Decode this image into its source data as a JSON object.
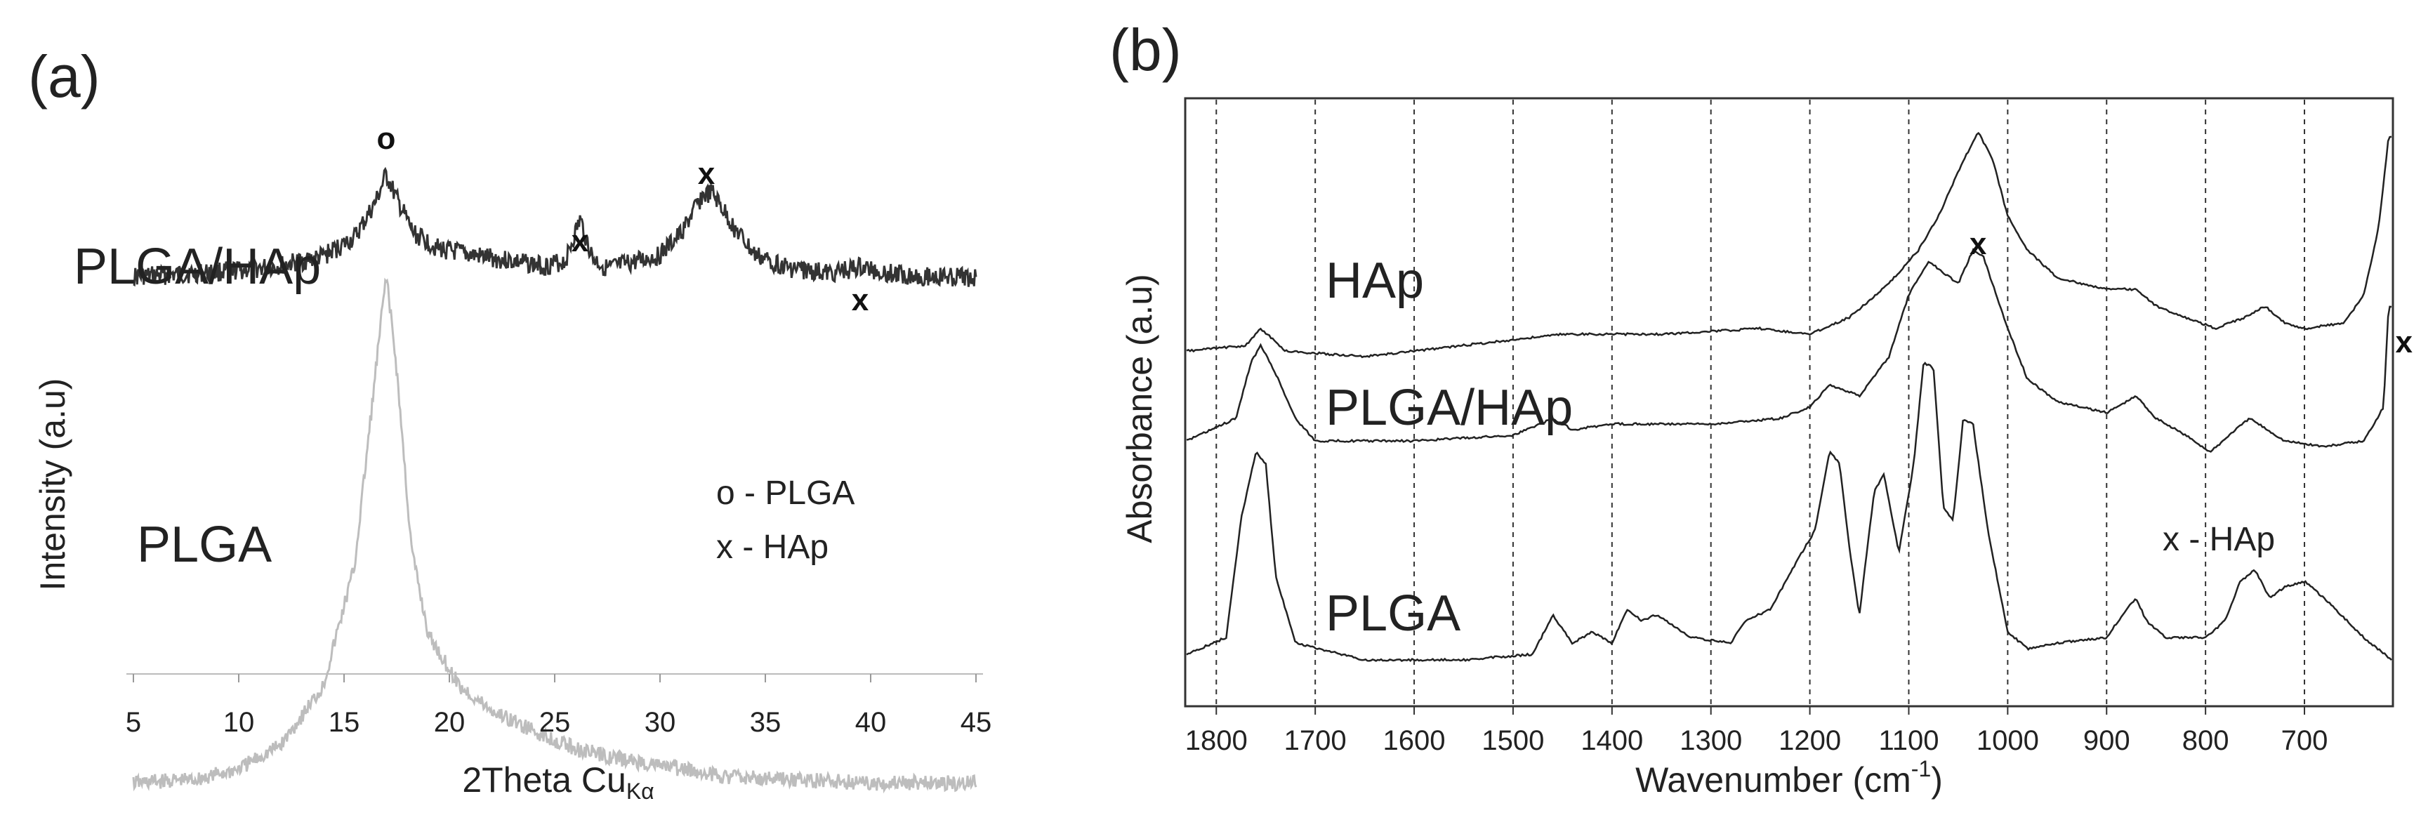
{
  "chart_data": [
    {
      "panel": "(a)",
      "type": "line",
      "xlabel": "2Theta Cu",
      "xlabel_subscript": "Kα",
      "ylabel": "Intensity (a.u)",
      "xlim": [
        5,
        45
      ],
      "x_ticks": [
        "5",
        "10",
        "15",
        "20",
        "25",
        "30",
        "35",
        "40",
        "45"
      ],
      "y_ticks_shown": false,
      "series": [
        {
          "name": "PLGA/HAp",
          "color": "#333333",
          "points": [
            [
              5,
              0.3
            ],
            [
              8,
              0.32
            ],
            [
              10,
              0.34
            ],
            [
              12,
              0.37
            ],
            [
              14,
              0.43
            ],
            [
              15.5,
              0.55
            ],
            [
              16.5,
              0.78
            ],
            [
              17,
              0.96
            ],
            [
              17.5,
              0.8
            ],
            [
              18.3,
              0.58
            ],
            [
              19.5,
              0.48
            ],
            [
              21,
              0.44
            ],
            [
              23,
              0.4
            ],
            [
              24.5,
              0.37
            ],
            [
              25.5,
              0.4
            ],
            [
              26.2,
              0.67
            ],
            [
              26.8,
              0.42
            ],
            [
              27.5,
              0.35
            ],
            [
              29,
              0.4
            ],
            [
              30,
              0.44
            ],
            [
              31,
              0.58
            ],
            [
              32,
              0.82
            ],
            [
              32.5,
              0.84
            ],
            [
              33.5,
              0.62
            ],
            [
              34.5,
              0.44
            ],
            [
              36,
              0.36
            ],
            [
              38,
              0.32
            ],
            [
              39.5,
              0.36
            ],
            [
              41,
              0.32
            ],
            [
              43,
              0.3
            ],
            [
              45,
              0.29
            ]
          ]
        },
        {
          "name": "PLGA",
          "color": "#bdbdbd",
          "points": [
            [
              5,
              -0.48
            ],
            [
              8,
              -0.47
            ],
            [
              10,
              -0.44
            ],
            [
              12,
              -0.37
            ],
            [
              14,
              -0.2
            ],
            [
              15.5,
              0.15
            ],
            [
              16.3,
              0.6
            ],
            [
              17,
              1.0
            ],
            [
              17.5,
              0.72
            ],
            [
              18.2,
              0.2
            ],
            [
              19,
              -0.05
            ],
            [
              20.5,
              -0.2
            ],
            [
              22,
              -0.27
            ],
            [
              24,
              -0.33
            ],
            [
              26,
              -0.38
            ],
            [
              28,
              -0.41
            ],
            [
              30,
              -0.43
            ],
            [
              33,
              -0.46
            ],
            [
              36,
              -0.47
            ],
            [
              40,
              -0.48
            ],
            [
              45,
              -0.48
            ]
          ]
        }
      ],
      "annotations": [
        {
          "text": "o",
          "x": 17
        },
        {
          "text": "x",
          "x": 26.2
        },
        {
          "text": "x",
          "x": 32.2
        },
        {
          "text": "x",
          "x": 39.5
        }
      ],
      "legend": [
        "o -  PLGA",
        "x  - HAp"
      ]
    },
    {
      "panel": "(b)",
      "type": "line",
      "xlabel": "Wavenumber (cm",
      "xlabel_superscript": "-1",
      "xlabel_close": ")",
      "ylabel": "Absorbance (a.u)",
      "xlim": [
        1830,
        612
      ],
      "x_ticks": [
        "1800",
        "1700",
        "1600",
        "1500",
        "1400",
        "1300",
        "1200",
        "1100",
        "1000",
        "900",
        "800",
        "700"
      ],
      "y_ticks_shown": false,
      "grid": "vertical-dashed",
      "series": [
        {
          "name": "HAp",
          "color": "#222222",
          "points": [
            [
              1830,
              0.6
            ],
            [
              1770,
              0.61
            ],
            [
              1755,
              0.64
            ],
            [
              1730,
              0.6
            ],
            [
              1650,
              0.59
            ],
            [
              1550,
              0.61
            ],
            [
              1450,
              0.63
            ],
            [
              1350,
              0.63
            ],
            [
              1250,
              0.64
            ],
            [
              1200,
              0.63
            ],
            [
              1160,
              0.66
            ],
            [
              1120,
              0.72
            ],
            [
              1090,
              0.78
            ],
            [
              1070,
              0.84
            ],
            [
              1050,
              0.92
            ],
            [
              1030,
              0.99
            ],
            [
              1015,
              0.94
            ],
            [
              1000,
              0.84
            ],
            [
              980,
              0.78
            ],
            [
              950,
              0.73
            ],
            [
              900,
              0.71
            ],
            [
              870,
              0.71
            ],
            [
              850,
              0.68
            ],
            [
              820,
              0.66
            ],
            [
              790,
              0.64
            ],
            [
              760,
              0.66
            ],
            [
              740,
              0.68
            ],
            [
              720,
              0.65
            ],
            [
              700,
              0.64
            ],
            [
              660,
              0.65
            ],
            [
              640,
              0.7
            ],
            [
              625,
              0.82
            ],
            [
              615,
              0.98
            ]
          ]
        },
        {
          "name": "PLGA/HAp",
          "color": "#222222",
          "points": [
            [
              1830,
              0.44
            ],
            [
              1780,
              0.48
            ],
            [
              1765,
              0.58
            ],
            [
              1755,
              0.61
            ],
            [
              1740,
              0.56
            ],
            [
              1720,
              0.48
            ],
            [
              1700,
              0.44
            ],
            [
              1600,
              0.44
            ],
            [
              1500,
              0.45
            ],
            [
              1460,
              0.48
            ],
            [
              1440,
              0.46
            ],
            [
              1400,
              0.47
            ],
            [
              1300,
              0.47
            ],
            [
              1230,
              0.48
            ],
            [
              1200,
              0.5
            ],
            [
              1180,
              0.54
            ],
            [
              1165,
              0.53
            ],
            [
              1150,
              0.52
            ],
            [
              1120,
              0.59
            ],
            [
              1100,
              0.7
            ],
            [
              1080,
              0.76
            ],
            [
              1065,
              0.74
            ],
            [
              1050,
              0.72
            ],
            [
              1035,
              0.78
            ],
            [
              1025,
              0.77
            ],
            [
              1000,
              0.64
            ],
            [
              980,
              0.55
            ],
            [
              950,
              0.51
            ],
            [
              900,
              0.49
            ],
            [
              870,
              0.52
            ],
            [
              850,
              0.48
            ],
            [
              820,
              0.45
            ],
            [
              795,
              0.42
            ],
            [
              770,
              0.46
            ],
            [
              755,
              0.48
            ],
            [
              720,
              0.44
            ],
            [
              680,
              0.43
            ],
            [
              640,
              0.44
            ],
            [
              620,
              0.5
            ],
            [
              615,
              0.68
            ]
          ]
        },
        {
          "name": "PLGA",
          "color": "#222222",
          "points": [
            [
              1830,
              0.06
            ],
            [
              1790,
              0.09
            ],
            [
              1775,
              0.3
            ],
            [
              1760,
              0.42
            ],
            [
              1750,
              0.4
            ],
            [
              1740,
              0.2
            ],
            [
              1720,
              0.08
            ],
            [
              1650,
              0.05
            ],
            [
              1550,
              0.05
            ],
            [
              1480,
              0.06
            ],
            [
              1460,
              0.13
            ],
            [
              1440,
              0.08
            ],
            [
              1420,
              0.1
            ],
            [
              1400,
              0.08
            ],
            [
              1385,
              0.14
            ],
            [
              1370,
              0.12
            ],
            [
              1355,
              0.13
            ],
            [
              1320,
              0.09
            ],
            [
              1280,
              0.08
            ],
            [
              1265,
              0.12
            ],
            [
              1240,
              0.14
            ],
            [
              1215,
              0.22
            ],
            [
              1195,
              0.28
            ],
            [
              1180,
              0.42
            ],
            [
              1170,
              0.4
            ],
            [
              1160,
              0.25
            ],
            [
              1150,
              0.13
            ],
            [
              1135,
              0.35
            ],
            [
              1125,
              0.38
            ],
            [
              1110,
              0.24
            ],
            [
              1095,
              0.4
            ],
            [
              1085,
              0.58
            ],
            [
              1075,
              0.57
            ],
            [
              1065,
              0.32
            ],
            [
              1055,
              0.3
            ],
            [
              1045,
              0.48
            ],
            [
              1035,
              0.47
            ],
            [
              1020,
              0.28
            ],
            [
              1000,
              0.1
            ],
            [
              980,
              0.07
            ],
            [
              950,
              0.08
            ],
            [
              900,
              0.09
            ],
            [
              880,
              0.14
            ],
            [
              870,
              0.16
            ],
            [
              860,
              0.12
            ],
            [
              840,
              0.09
            ],
            [
              800,
              0.09
            ],
            [
              780,
              0.12
            ],
            [
              765,
              0.19
            ],
            [
              750,
              0.21
            ],
            [
              735,
              0.16
            ],
            [
              720,
              0.18
            ],
            [
              700,
              0.19
            ],
            [
              680,
              0.16
            ],
            [
              640,
              0.09
            ],
            [
              612,
              0.05
            ]
          ]
        }
      ],
      "annotations": [
        {
          "text": "x",
          "x": 1030
        },
        {
          "text": "x",
          "x": 615
        }
      ],
      "legend": [
        "x - HAp"
      ]
    }
  ]
}
